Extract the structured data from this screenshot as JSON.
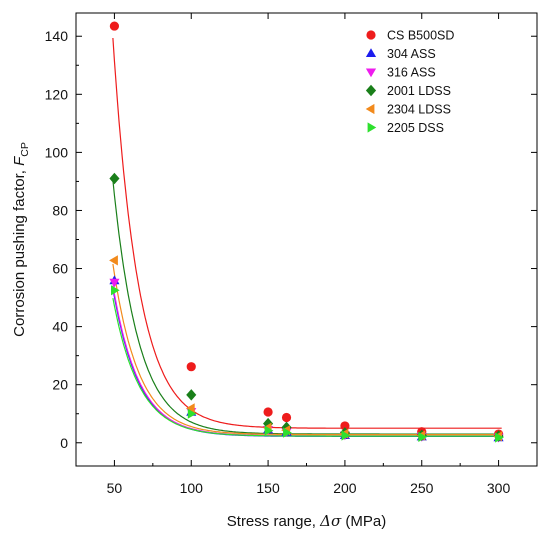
{
  "chart_data": {
    "type": "scatter",
    "xlabel": "Stress range, Δσ (MPa)",
    "xlabel_parts": {
      "prefix": "Stress range, ",
      "symbol": "Δσ",
      "suffix": " (MPa)"
    },
    "ylabel": "Corrosion pushing factor, F_CP",
    "ylabel_parts": {
      "prefix": "Corrosion pushing factor, ",
      "symbol": "F",
      "subscript": "CP"
    },
    "xlim": [
      25,
      325
    ],
    "ylim": [
      -8,
      148
    ],
    "x_ticks": [
      50,
      100,
      150,
      200,
      250,
      300
    ],
    "y_ticks": [
      0,
      20,
      40,
      60,
      80,
      100,
      120,
      140
    ],
    "legend_position": "top-right",
    "grid": false,
    "x": [
      50,
      100,
      150,
      162,
      200,
      250,
      300
    ],
    "series": [
      {
        "name": "CS B500SD",
        "color": "#ee1c1c",
        "marker": "circle",
        "values": [
          143.5,
          26.2,
          10.6,
          8.7,
          5.8,
          3.8,
          3.0
        ],
        "fit": {
          "a": 2530,
          "k": 0.0599,
          "c": 5.0
        }
      },
      {
        "name": "304 ASS",
        "color": "#1c1cee",
        "marker": "triangle-up",
        "values": [
          55.8,
          10.5,
          4.4,
          3.6,
          2.5,
          2.0,
          1.7
        ],
        "fit": {
          "a": 941,
          "k": 0.0595,
          "c": 2.2
        }
      },
      {
        "name": "316 ASS",
        "color": "#ee1cee",
        "marker": "triangle-down",
        "values": [
          55.3,
          10.8,
          4.6,
          3.8,
          2.7,
          2.2,
          1.9
        ],
        "fit": {
          "a": 956,
          "k": 0.0595,
          "c": 2.4
        }
      },
      {
        "name": "2001 LDSS",
        "color": "#1a7f1a",
        "marker": "diamond",
        "values": [
          91.0,
          16.5,
          6.6,
          5.3,
          3.4,
          2.6,
          2.3
        ],
        "fit": {
          "a": 1645,
          "k": 0.0599,
          "c": 3.0
        }
      },
      {
        "name": "2304 LDSS",
        "color": "#f28a1c",
        "marker": "triangle-left",
        "values": [
          62.8,
          11.9,
          5.2,
          4.3,
          3.1,
          2.5,
          2.2
        ],
        "fit": {
          "a": 1106,
          "k": 0.0599,
          "c": 2.8
        }
      },
      {
        "name": "2205 DSS",
        "color": "#2ee02e",
        "marker": "triangle-right",
        "values": [
          52.5,
          10.0,
          4.2,
          3.5,
          2.5,
          2.0,
          1.8
        ],
        "fit": {
          "a": 852,
          "k": 0.0589,
          "c": 2.3
        }
      }
    ]
  }
}
